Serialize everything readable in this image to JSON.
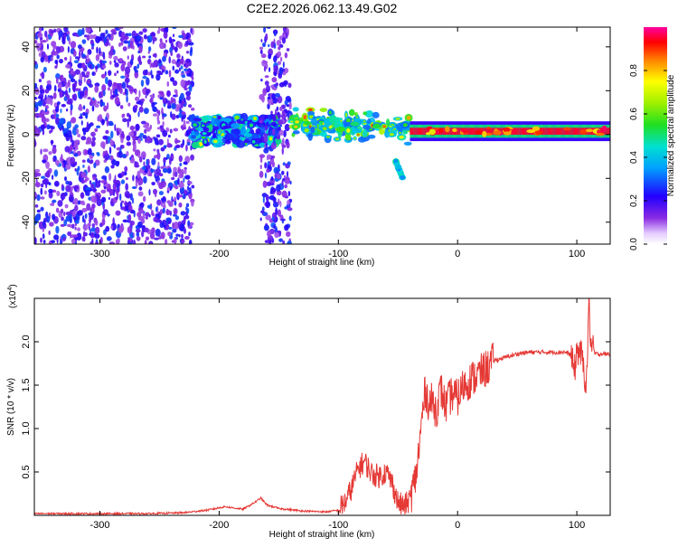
{
  "figure_title": "C2E2.2026.062.13.49.G02",
  "colors": {
    "axis": "#000000",
    "snr_line": "#e53935",
    "background": "#ffffff"
  },
  "chart_data": [
    {
      "type": "heatmap",
      "xlabel": "Height of straight line (km)",
      "ylabel": "Frequency (Hz)",
      "xlim": [
        -355,
        128
      ],
      "ylim": [
        -50,
        49
      ],
      "x_ticks": [
        -300,
        -200,
        -100,
        0,
        100
      ],
      "x_tick_labels": [
        "-300",
        "-200",
        "-100",
        "0",
        "100"
      ],
      "y_ticks": [
        -40,
        -20,
        0,
        20,
        40
      ],
      "y_tick_labels": [
        "-40",
        "-20",
        "0",
        "20",
        "40"
      ],
      "colormap": "rainbow (white at 0 through violet, blue, cyan, green, yellow, orange, red to magenta at 1)",
      "colorbar": {
        "label": "Normalized spectral amplitude",
        "range": [
          0,
          1
        ],
        "ticks": [
          0,
          0.2,
          0.4,
          0.6,
          0.8
        ],
        "tick_labels": [
          "0.0",
          "0.2",
          "0.4",
          "0.6",
          "0.8"
        ]
      },
      "regions": [
        {
          "x_range": [
            -355,
            -222
          ],
          "freq_range": [
            -50,
            49
          ],
          "amplitude": "0.1-0.3",
          "pattern": "broadband speckle noise"
        },
        {
          "x_range": [
            -222,
            -150
          ],
          "freq_range": [
            -5,
            8
          ],
          "amplitude": "0.2-0.5",
          "pattern": "dense blobs around 0 Hz"
        },
        {
          "x_range": [
            -165,
            -140
          ],
          "freq_range": [
            -50,
            49
          ],
          "amplitude": "0.1-0.3",
          "pattern": "vertical noise band"
        },
        {
          "x_range": [
            -140,
            -40
          ],
          "freq_range": [
            -6,
            10
          ],
          "amplitude": "0.3-0.7",
          "pattern": "signal line near 2 Hz with scattered blobs"
        },
        {
          "x_range": [
            -52,
            -45
          ],
          "freq_range": [
            -20,
            -12
          ],
          "amplitude": "0.3-0.5",
          "pattern": "branch toward negative frequency"
        },
        {
          "x_range": [
            -40,
            128
          ],
          "freq_range": [
            0,
            4
          ],
          "amplitude": "0.7-1.0",
          "pattern": "strong continuous line at ~1.5 Hz"
        }
      ]
    },
    {
      "type": "line",
      "xlabel": "Height of straight line (km)",
      "ylabel": "SNR (10 * v/v)",
      "y_multiplier": "(x10",
      "y_multiplier_exp": "4",
      "y_multiplier_close": ")",
      "xlim": [
        -355,
        128
      ],
      "ylim": [
        0,
        2.5
      ],
      "x_ticks": [
        -300,
        -200,
        -100,
        0,
        100
      ],
      "x_tick_labels": [
        "-300",
        "-200",
        "-100",
        "0",
        "100"
      ],
      "y_ticks": [
        0.5,
        1.0,
        1.5,
        2.0
      ],
      "y_tick_labels": [
        "0.5",
        "1.0",
        "1.5",
        "2.0"
      ],
      "series": [
        {
          "color": "#e53935",
          "x": [
            -355,
            -300,
            -260,
            -230,
            -210,
            -195,
            -180,
            -170,
            -165,
            -160,
            -150,
            -130,
            -110,
            -100,
            -93,
            -88,
            -83,
            -78,
            -72,
            -66,
            -60,
            -55,
            -50,
            -45,
            -40,
            -35,
            -32,
            -30,
            -27,
            -24,
            -21,
            -18,
            -14,
            -10,
            -5,
            0,
            5,
            10,
            15,
            20,
            25,
            30,
            40,
            50,
            60,
            70,
            80,
            90,
            95,
            98,
            100,
            103,
            106,
            108,
            110,
            112,
            115,
            120,
            128
          ],
          "y": [
            0.02,
            0.02,
            0.02,
            0.03,
            0.06,
            0.1,
            0.07,
            0.15,
            0.2,
            0.12,
            0.08,
            0.05,
            0.04,
            0.06,
            0.18,
            0.35,
            0.55,
            0.62,
            0.48,
            0.45,
            0.5,
            0.38,
            0.15,
            0.1,
            0.18,
            0.45,
            0.8,
            1.1,
            1.45,
            1.28,
            1.32,
            1.2,
            1.45,
            1.25,
            1.4,
            1.35,
            1.5,
            1.55,
            1.6,
            1.65,
            1.7,
            1.78,
            1.82,
            1.86,
            1.88,
            1.88,
            1.88,
            1.88,
            1.85,
            1.65,
            1.9,
            1.88,
            1.7,
            1.45,
            2.45,
            1.95,
            1.86,
            1.86,
            1.86
          ]
        }
      ]
    }
  ]
}
